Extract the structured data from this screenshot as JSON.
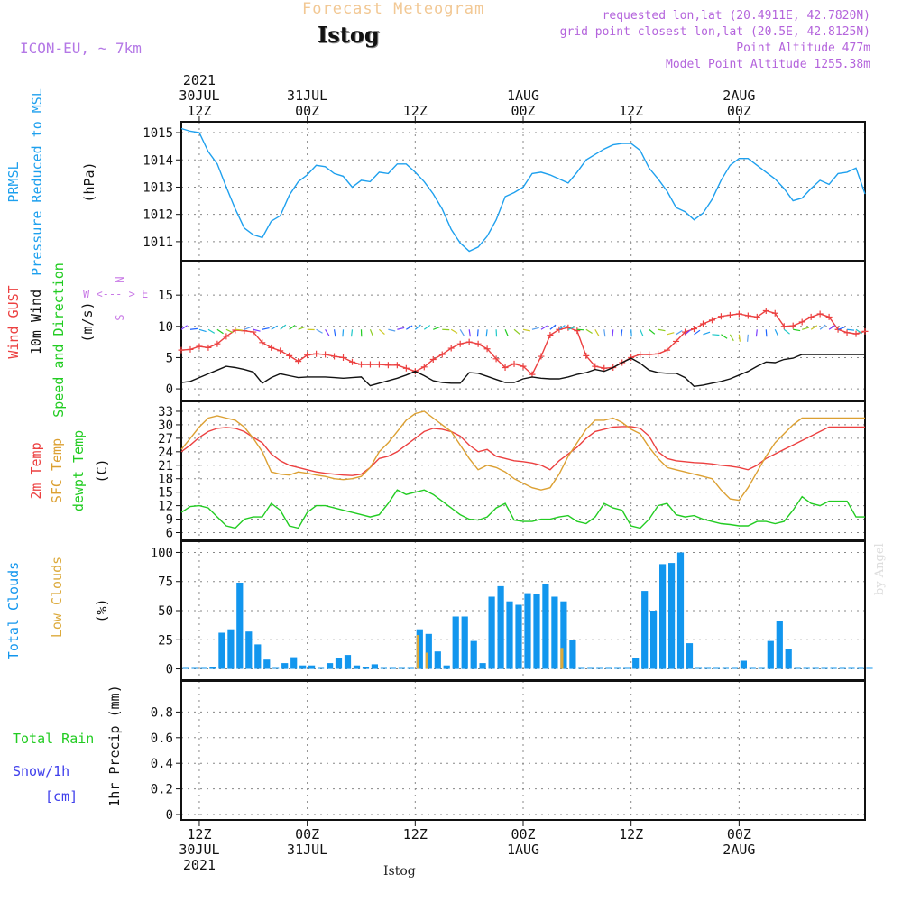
{
  "header": {
    "title": "Forecast Meteogram",
    "station": "Istog",
    "model": "ICON-EU, ~ 7km",
    "info": [
      "requested lon,lat (20.4911E, 42.7820N)",
      "grid point closest lon,lat (20.5E, 42.8125N)",
      "Point Altitude 477m",
      "Model Point Altitude 1255.38m"
    ],
    "watermark": "by Angel",
    "footer": "Istog"
  },
  "time_axis": {
    "hours_span": [
      0,
      76
    ],
    "top_ticks": [
      {
        "h": 2,
        "lines": [
          "2021",
          "30JUL",
          "12Z"
        ]
      },
      {
        "h": 14,
        "lines": [
          "31JUL",
          "00Z"
        ]
      },
      {
        "h": 26,
        "lines": [
          "12Z"
        ]
      },
      {
        "h": 38,
        "lines": [
          "1AUG",
          "00Z"
        ]
      },
      {
        "h": 50,
        "lines": [
          "12Z"
        ]
      },
      {
        "h": 62,
        "lines": [
          "2AUG",
          "00Z"
        ]
      }
    ],
    "bottom_ticks": [
      {
        "h": 2,
        "lines": [
          "12Z",
          "30JUL",
          "2021"
        ]
      },
      {
        "h": 14,
        "lines": [
          "00Z",
          "31JUL"
        ]
      },
      {
        "h": 26,
        "lines": [
          "12Z"
        ]
      },
      {
        "h": 38,
        "lines": [
          "00Z",
          "1AUG"
        ]
      },
      {
        "h": 50,
        "lines": [
          "12Z"
        ]
      },
      {
        "h": 62,
        "lines": [
          "00Z",
          "2AUG"
        ]
      }
    ]
  },
  "colors": {
    "pressure": "#1ea0ee",
    "gust": "#ec4040",
    "wind": "#111111",
    "temp2m": "#ec4040",
    "sfc": "#dca032",
    "dewpt": "#22cc22",
    "clouds": "#1296ee",
    "lowclouds": "#dcaa3c",
    "rain": "#22cc22",
    "snow": "#4040ec",
    "dir": "#c878e6"
  },
  "chart_data": [
    {
      "type": "line",
      "id": "pressure",
      "ylabel_lines": [
        "PRMSL",
        "Pressure Reduced to MSL"
      ],
      "unit": "(hPa)",
      "ylim": [
        1010.5,
        1015.2
      ],
      "yticks": [
        1011,
        1012,
        1013,
        1014,
        1015
      ],
      "series": [
        {
          "key": "pressure",
          "x": [
            0,
            1,
            2,
            3,
            4,
            5,
            6,
            7,
            8,
            9,
            10,
            11,
            12,
            13,
            14,
            15,
            16,
            17,
            18,
            19,
            20,
            21,
            22,
            23,
            24,
            25,
            26,
            27,
            28,
            29,
            30,
            31,
            32,
            33,
            34,
            35,
            36,
            37,
            38,
            39,
            40,
            41,
            42,
            43,
            44,
            45,
            46,
            47,
            48,
            49,
            50,
            51,
            52,
            53,
            54,
            55,
            56,
            57,
            58,
            59,
            60,
            61,
            62,
            63,
            64,
            65,
            66,
            67,
            68,
            69,
            70,
            71,
            72,
            73,
            74,
            75,
            76
          ],
          "values": [
            1015.15,
            1015.05,
            1015.0,
            1014.3,
            1013.85,
            1013.0,
            1012.2,
            1011.5,
            1011.25,
            1011.15,
            1011.75,
            1011.95,
            1012.7,
            1013.2,
            1013.45,
            1013.8,
            1013.75,
            1013.5,
            1013.4,
            1013.0,
            1013.25,
            1013.2,
            1013.55,
            1013.5,
            1013.85,
            1013.85,
            1013.55,
            1013.2,
            1012.75,
            1012.2,
            1011.45,
            1010.95,
            1010.65,
            1010.8,
            1011.2,
            1011.8,
            1012.65,
            1012.8,
            1013.0,
            1013.5,
            1013.55,
            1013.45,
            1013.3,
            1013.15,
            1013.55,
            1014.0,
            1014.2,
            1014.4,
            1014.55,
            1014.6,
            1014.6,
            1014.35,
            1013.7,
            1013.3,
            1012.85,
            1012.25,
            1012.1,
            1011.8,
            1012.05,
            1012.55,
            1013.25,
            1013.8,
            1014.05,
            1014.05,
            1013.8,
            1013.55,
            1013.3,
            1012.95,
            1012.5,
            1012.6,
            1012.95,
            1013.25,
            1013.1,
            1013.5,
            1013.55,
            1013.7,
            1012.75
          ]
        }
      ]
    },
    {
      "type": "line",
      "id": "wind",
      "ylabel_lines": [
        "Wind GUST",
        "10m Wind",
        "Speed and Direction"
      ],
      "unit": "(m/s)",
      "compass": [
        "N",
        "W <--- > E",
        "S"
      ],
      "ylim": [
        -1,
        19.5
      ],
      "yticks": [
        0,
        5,
        10,
        15
      ],
      "series": [
        {
          "key": "gust",
          "name": "Wind GUST",
          "values": [
            6.2,
            6.3,
            6.8,
            6.6,
            7.2,
            8.4,
            9.4,
            9.3,
            9.1,
            7.4,
            6.6,
            6.1,
            5.3,
            4.4,
            5.4,
            5.6,
            5.5,
            5.2,
            5.0,
            4.3,
            3.9,
            3.9,
            3.9,
            3.8,
            3.8,
            3.3,
            2.8,
            3.5,
            4.7,
            5.5,
            6.5,
            7.2,
            7.5,
            7.2,
            6.4,
            4.8,
            3.4,
            4.0,
            3.6,
            2.3,
            5.2,
            8.6,
            9.5,
            9.8,
            9.3,
            5.3,
            3.6,
            3.3,
            3.4,
            4.2,
            5.0,
            5.5,
            5.5,
            5.6,
            6.2,
            7.6,
            9.1,
            9.6,
            10.4,
            11.0,
            11.6,
            11.8,
            12.0,
            11.7,
            11.5,
            12.5,
            12.1,
            10.0,
            10.1,
            10.7,
            11.5,
            12.0,
            11.5,
            9.5,
            9.0,
            8.8,
            9.2
          ]
        },
        {
          "key": "wind",
          "name": "10m Wind",
          "values": [
            1.0,
            1.2,
            1.8,
            2.4,
            3.0,
            3.6,
            3.4,
            3.1,
            2.7,
            0.9,
            1.8,
            2.4,
            2.1,
            1.8,
            1.9,
            1.9,
            1.9,
            1.8,
            1.7,
            1.8,
            1.9,
            0.5,
            0.9,
            1.3,
            1.7,
            2.2,
            2.8,
            2.1,
            1.3,
            1.0,
            0.9,
            0.9,
            2.6,
            2.5,
            2.0,
            1.5,
            1.0,
            1.0,
            1.6,
            1.9,
            1.7,
            1.6,
            1.6,
            1.9,
            2.3,
            2.6,
            3.1,
            2.8,
            3.4,
            4.2,
            4.9,
            4.1,
            3.0,
            2.6,
            2.5,
            2.5,
            1.8,
            0.4,
            0.6,
            0.9,
            1.2,
            1.6,
            2.2,
            2.8,
            3.6,
            4.3,
            4.2,
            4.7,
            4.9,
            5.5,
            5.5,
            5.5,
            5.5,
            5.5,
            5.5,
            5.5,
            5.5
          ]
        }
      ]
    },
    {
      "type": "line",
      "id": "temperature",
      "ylabel_lines": [
        "2m Temp",
        "SFC Temp",
        "dewpt Temp"
      ],
      "unit": "(C)",
      "ylim": [
        5.5,
        34
      ],
      "yticks": [
        6,
        9,
        12,
        15,
        18,
        21,
        24,
        27,
        30,
        33
      ],
      "series": [
        {
          "key": "temp2m",
          "name": "2m Temp",
          "values": [
            24.0,
            25.5,
            27.2,
            28.5,
            29.2,
            29.4,
            29.2,
            28.5,
            27.2,
            26.0,
            23.5,
            22.0,
            21.0,
            20.5,
            20.0,
            19.5,
            19.2,
            19.0,
            18.8,
            18.7,
            19.0,
            20.5,
            22.5,
            23.0,
            24.0,
            25.5,
            27.0,
            28.5,
            29.2,
            29.0,
            28.5,
            27.5,
            25.5,
            24.0,
            24.5,
            23.0,
            22.5,
            22.0,
            21.8,
            21.5,
            21.0,
            20.0,
            22.0,
            23.5,
            25.0,
            27.0,
            28.5,
            29.0,
            29.5,
            29.6,
            29.6,
            29.2,
            27.5,
            24.0,
            22.5,
            22.0,
            21.8,
            21.6,
            21.5,
            21.3,
            21.0,
            20.8,
            20.5,
            20.0,
            21.0,
            22.5,
            23.5,
            24.5,
            25.5,
            26.5,
            27.5,
            28.5,
            29.5,
            29.5,
            29.5,
            29.5,
            29.5
          ]
        },
        {
          "key": "sfc",
          "name": "SFC Temp",
          "values": [
            24.5,
            27.0,
            29.5,
            31.5,
            32.0,
            31.5,
            31.0,
            29.5,
            27.0,
            24.0,
            19.5,
            19.0,
            18.8,
            19.5,
            19.2,
            18.8,
            18.5,
            18.0,
            17.8,
            18.0,
            18.5,
            20.5,
            24.0,
            26.0,
            28.5,
            31.0,
            32.5,
            33.0,
            31.5,
            30.0,
            28.5,
            25.5,
            22.5,
            20.0,
            21.0,
            20.5,
            19.5,
            18.0,
            17.0,
            16.0,
            15.5,
            16.0,
            19.0,
            23.0,
            26.0,
            29.0,
            31.0,
            31.0,
            31.5,
            30.5,
            29.0,
            28.0,
            25.0,
            22.5,
            20.5,
            20.0,
            19.5,
            19.0,
            18.5,
            18.0,
            15.5,
            13.5,
            13.2,
            16.0,
            19.5,
            23.0,
            26.0,
            28.0,
            30.0,
            31.5,
            31.5,
            31.5,
            31.5,
            31.5,
            31.5,
            31.5,
            31.5
          ]
        },
        {
          "key": "dewpt",
          "name": "dewpt Temp",
          "values": [
            10.5,
            11.8,
            12.0,
            11.5,
            9.5,
            7.5,
            7.0,
            9.0,
            9.5,
            9.5,
            12.5,
            11.0,
            7.5,
            7.0,
            10.5,
            12.0,
            12.0,
            11.5,
            11.0,
            10.5,
            10.0,
            9.5,
            10.0,
            12.5,
            15.5,
            14.5,
            15.0,
            15.5,
            14.5,
            13.0,
            11.5,
            10.0,
            9.0,
            8.8,
            9.5,
            11.5,
            12.5,
            8.8,
            8.5,
            8.5,
            9.0,
            9.0,
            9.5,
            9.8,
            8.5,
            8.0,
            9.5,
            12.5,
            11.5,
            11.0,
            7.5,
            7.0,
            9.0,
            12.0,
            12.5,
            10.0,
            9.5,
            9.8,
            9.0,
            8.5,
            8.0,
            7.8,
            7.5,
            7.5,
            8.5,
            8.5,
            8.0,
            8.5,
            11.0,
            14.0,
            12.5,
            12.0,
            13.0,
            13.0,
            13.0,
            9.5,
            9.5
          ]
        }
      ]
    },
    {
      "type": "bar",
      "id": "clouds",
      "ylabel_lines": [
        "Total Clouds",
        "Low Clouds"
      ],
      "unit": "(%)",
      "ylim": [
        -5,
        105
      ],
      "yticks": [
        0,
        25,
        50,
        75,
        100
      ],
      "series": [
        {
          "key": "clouds",
          "name": "Total Clouds",
          "values": [
            0,
            0,
            0,
            2,
            31,
            34,
            74,
            32,
            21,
            8,
            0,
            5,
            10,
            3,
            3,
            0,
            5,
            9,
            12,
            3,
            2,
            4,
            0,
            0,
            0,
            0,
            34,
            30,
            15,
            3,
            45,
            45,
            24,
            5,
            62,
            71,
            58,
            55,
            65,
            64,
            73,
            62,
            58,
            25,
            0,
            0,
            0,
            0,
            0,
            0,
            9,
            67,
            50,
            90,
            91,
            100,
            22,
            0,
            0,
            0,
            0,
            0,
            7,
            0,
            0,
            24,
            41,
            17,
            0,
            0,
            0,
            0,
            0,
            0,
            0,
            0,
            0
          ]
        },
        {
          "key": "lowclouds",
          "name": "Low Clouds",
          "values": [
            0,
            0,
            0,
            0,
            0,
            0,
            0,
            0,
            0,
            0,
            0,
            0,
            0,
            0,
            0,
            0,
            0,
            0,
            0,
            0,
            0,
            0,
            0,
            0,
            0,
            0,
            29,
            14,
            0,
            0,
            0,
            0,
            0,
            0,
            0,
            0,
            0,
            0,
            0,
            0,
            0,
            0,
            18,
            0,
            0,
            0,
            0,
            0,
            0,
            0,
            0,
            0,
            0,
            0,
            0,
            0,
            0,
            0,
            0,
            0,
            0,
            0,
            0,
            0,
            0,
            0,
            0,
            0,
            0,
            0,
            0,
            0,
            0,
            0,
            0,
            0,
            0
          ]
        }
      ]
    },
    {
      "type": "bar",
      "id": "precip",
      "ylabel_lines": [
        "1hr Precip (mm)"
      ],
      "legend_lines": [
        "Total  Rain",
        "Snow/1h",
        "[cm]"
      ],
      "ylim": [
        0,
        1.0
      ],
      "yticks": [
        0,
        0.2,
        0.4,
        0.6,
        0.8
      ],
      "series": [
        {
          "key": "rain",
          "name": "Total Rain",
          "values": []
        }
      ]
    }
  ]
}
